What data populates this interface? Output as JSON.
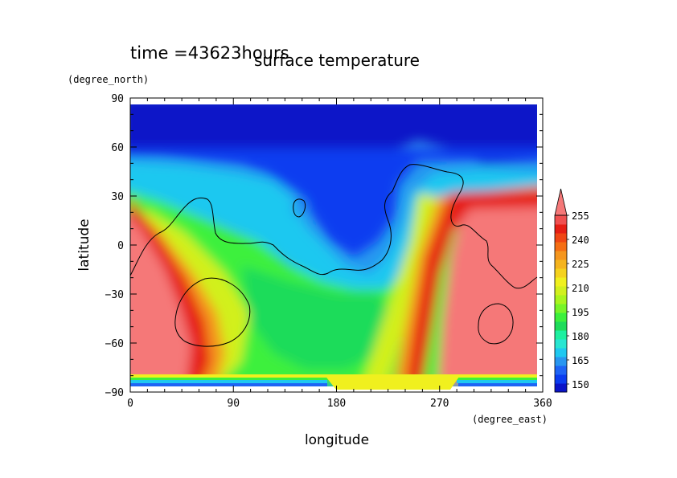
{
  "chart_data": {
    "type": "heatmap",
    "title": "surface temperature",
    "subtitle": "time =43623hours",
    "xlabel": "longitude",
    "ylabel": "latitude",
    "x_units": "(degree_east)",
    "y_units": "(degree_north)",
    "xlim": [
      0,
      360
    ],
    "ylim": [
      -90,
      90
    ],
    "x_ticks": [
      0,
      90,
      180,
      270,
      360
    ],
    "y_ticks": [
      90,
      60,
      30,
      0,
      -30,
      -60,
      -90
    ],
    "x_tick_labels": [
      "0",
      "90",
      "180",
      "270",
      "360"
    ],
    "y_tick_labels": [
      "90",
      "60",
      "30",
      "0",
      "−30",
      "−60",
      "−90"
    ],
    "colorbar": {
      "levels": [
        145,
        150,
        155,
        160,
        165,
        170,
        175,
        180,
        185,
        190,
        195,
        200,
        205,
        210,
        215,
        220,
        225,
        230,
        235,
        240,
        245,
        250,
        255
      ],
      "labels": [
        "150",
        "165",
        "180",
        "195",
        "210",
        "225",
        "240",
        "255"
      ],
      "label_values": [
        150,
        165,
        180,
        195,
        210,
        225,
        240,
        255
      ],
      "colors": [
        "#0a14c8",
        "#0a3cf0",
        "#1e64f5",
        "#2896f0",
        "#1ec8f0",
        "#28e6d2",
        "#1ef0a0",
        "#1edc5a",
        "#3cf03c",
        "#78f528",
        "#aaf51e",
        "#d2f01e",
        "#f0f01e",
        "#f5d21e",
        "#f5b41e",
        "#f5961e",
        "#f56e14",
        "#f04614",
        "#e61e14",
        "#f05050"
      ],
      "max_color": "#f57878",
      "extend": "max"
    }
  }
}
